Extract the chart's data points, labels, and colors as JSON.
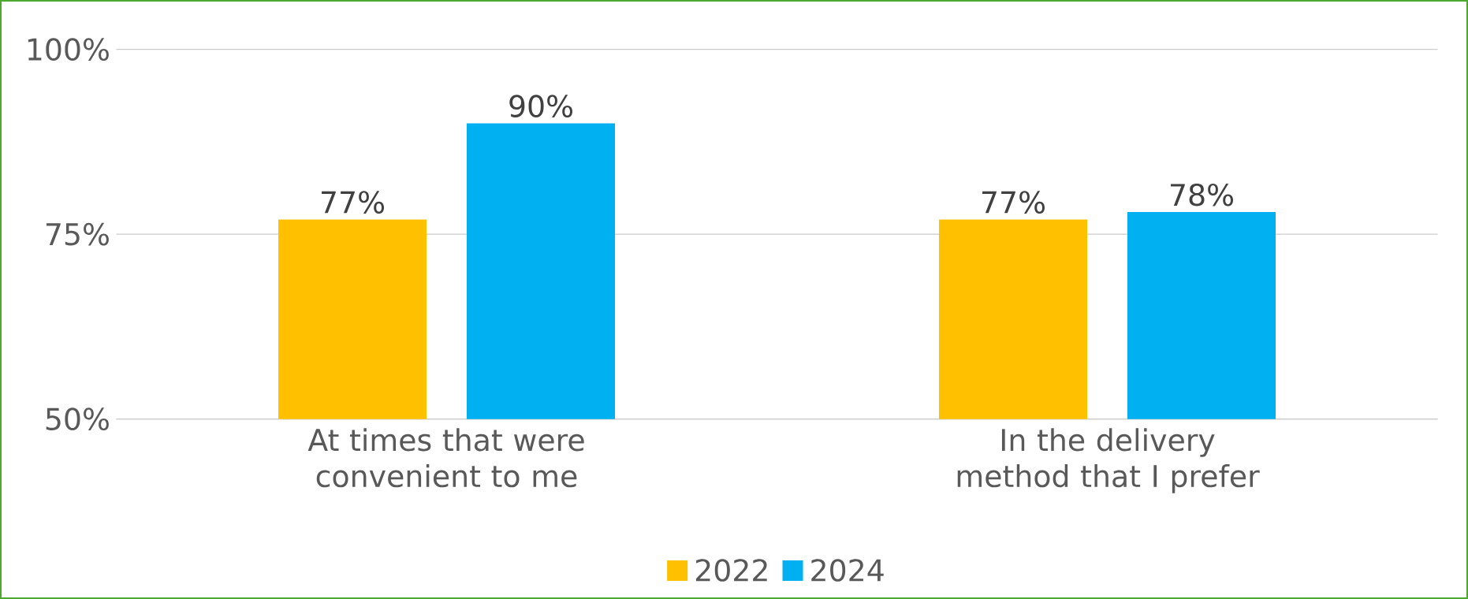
{
  "chart_data": {
    "type": "bar",
    "categories": [
      "At times that were convenient to me",
      "In the delivery method that I prefer"
    ],
    "series": [
      {
        "name": "2022",
        "color": "#ffc000",
        "values": [
          77,
          77
        ],
        "value_labels": [
          "77%",
          "77%"
        ]
      },
      {
        "name": "2024",
        "color": "#00b0f0",
        "values": [
          90,
          78
        ],
        "value_labels": [
          "90%",
          "78%"
        ]
      }
    ],
    "ylim": [
      50,
      100
    ],
    "yticks": [
      {
        "value": 50,
        "label": "50%"
      },
      {
        "value": 75,
        "label": "75%"
      },
      {
        "value": 100,
        "label": "100%"
      }
    ],
    "grid": "y",
    "legend": "bottom"
  }
}
